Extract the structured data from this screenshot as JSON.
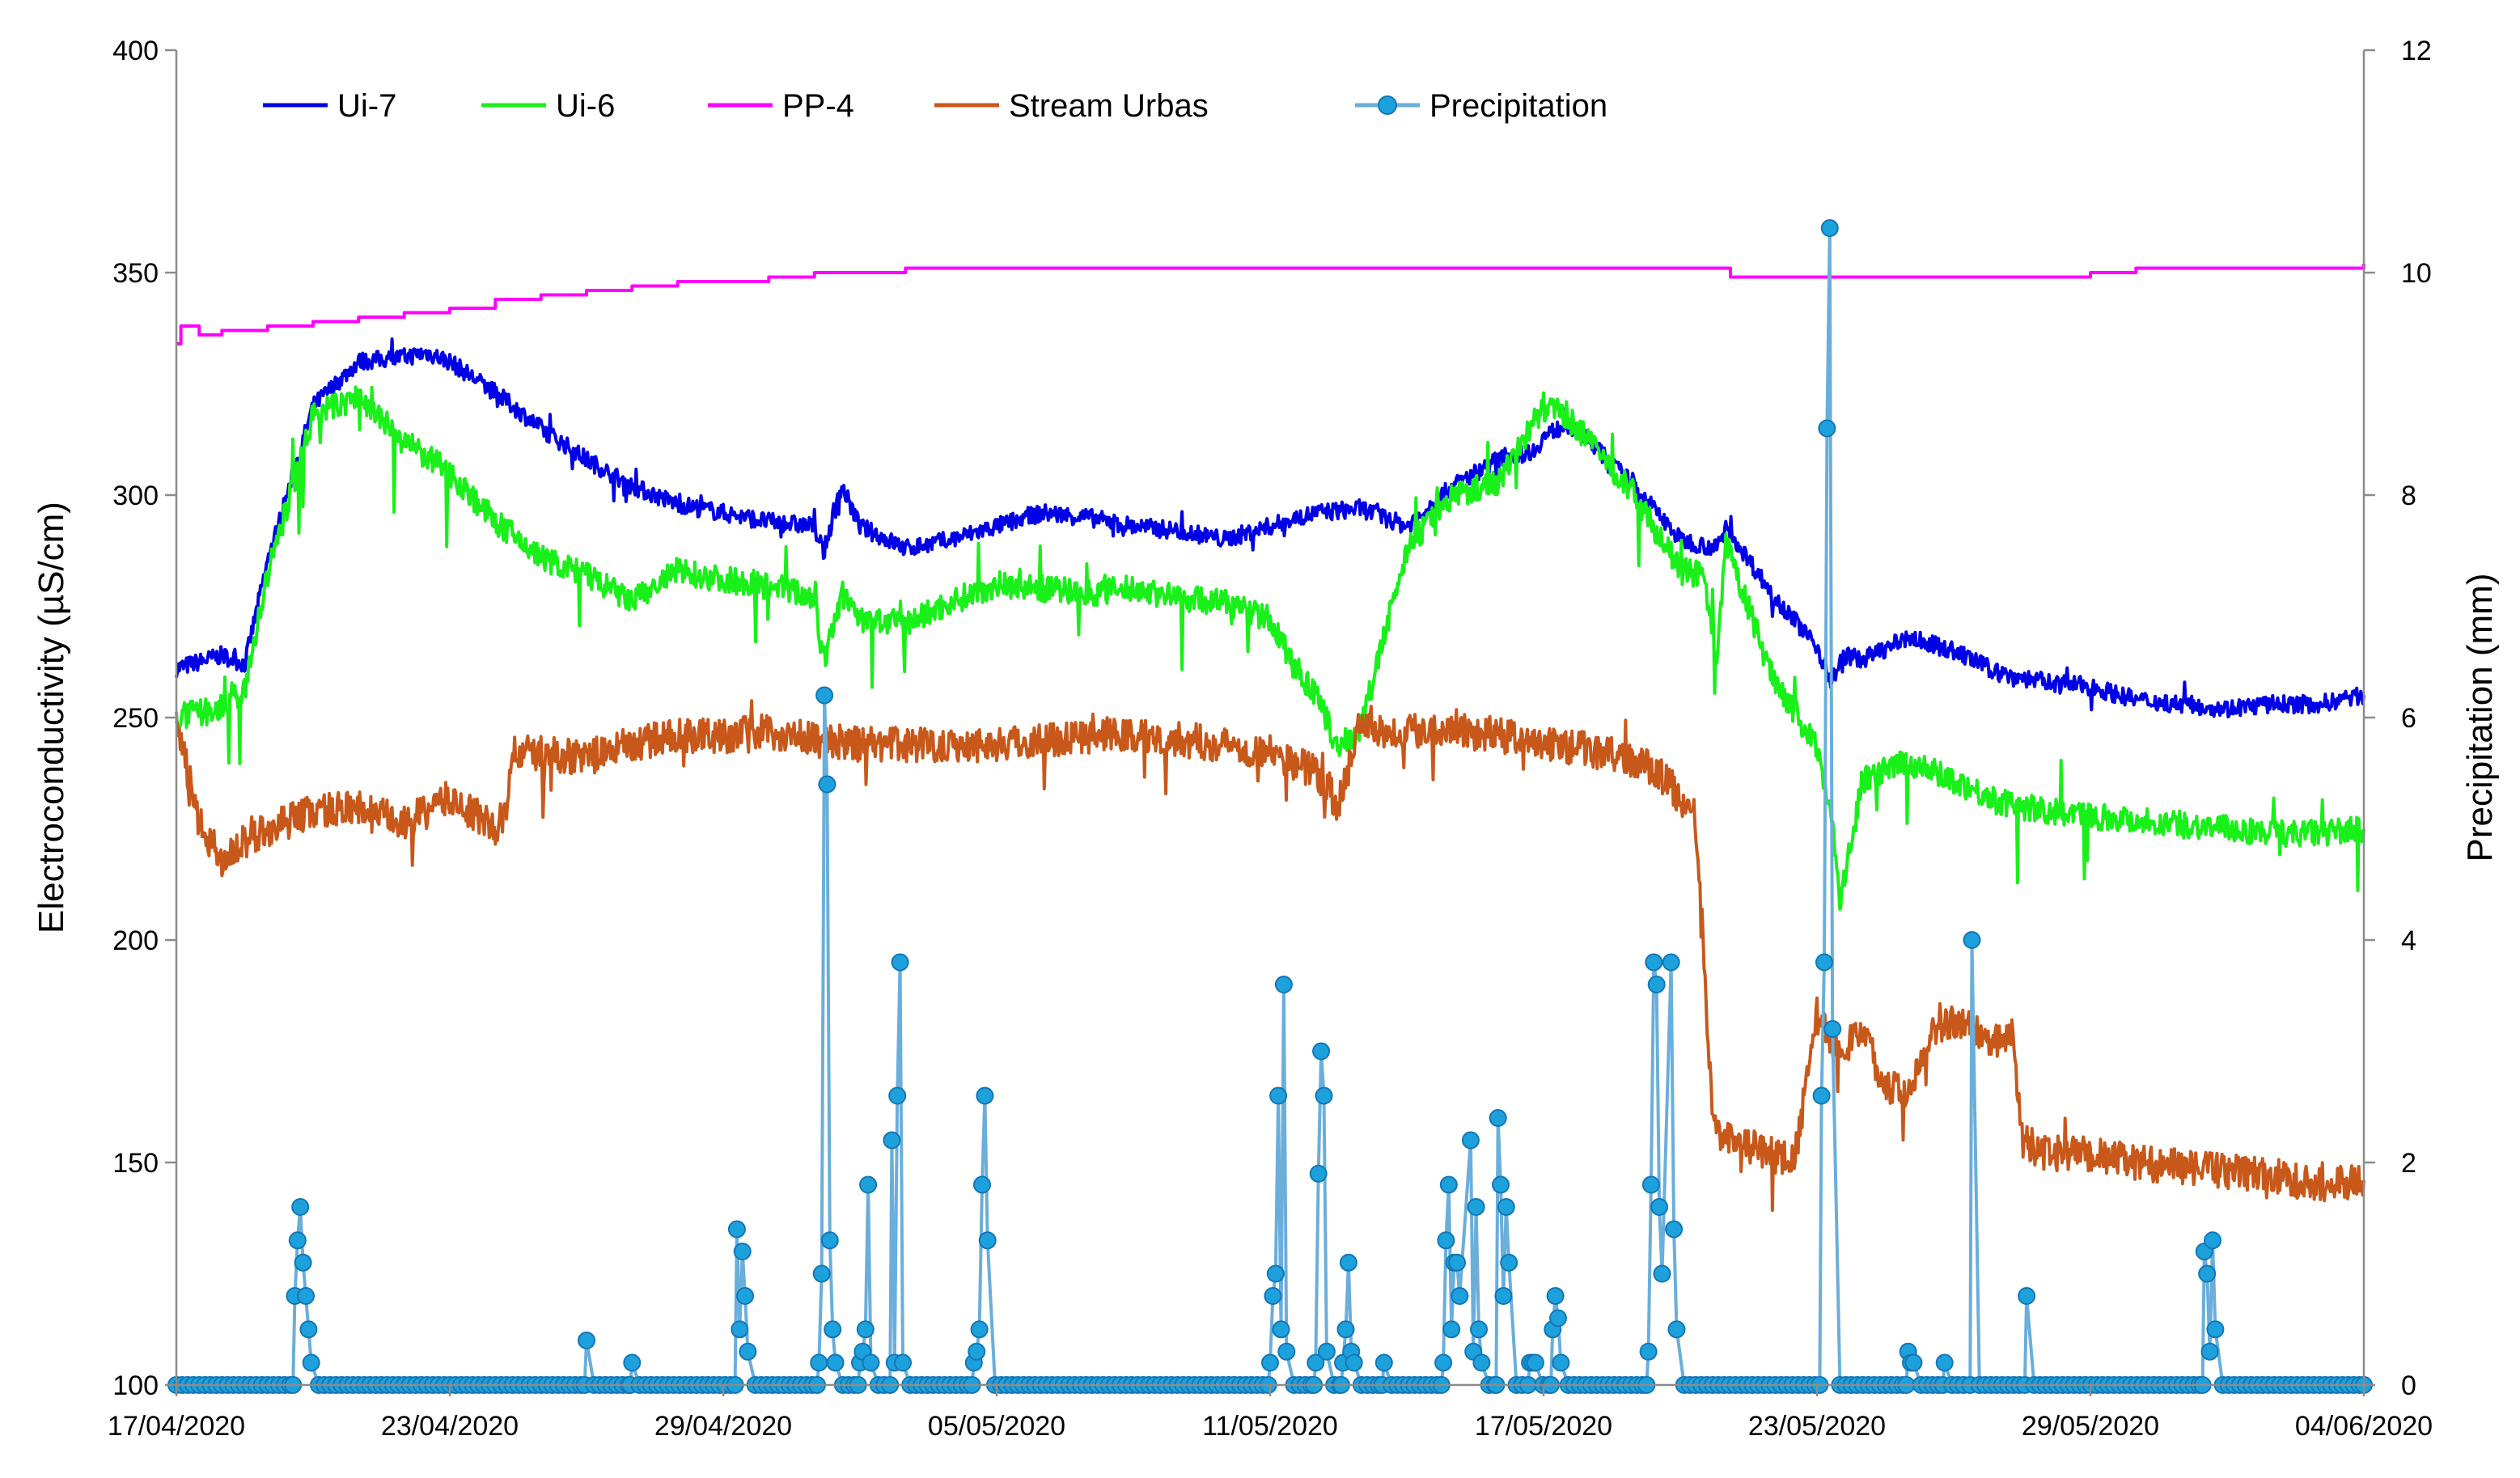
{
  "chart_data": {
    "type": "line",
    "title": "",
    "xlabel": "",
    "ylabel": "Electroconductivity (µS/cm)",
    "y2label": "Precipitation (mm)",
    "ylim": [
      100,
      400
    ],
    "y2lim": [
      0,
      12
    ],
    "yticks": [
      "100",
      "150",
      "200",
      "250",
      "300",
      "350",
      "400"
    ],
    "y2ticks": [
      "0",
      "2",
      "4",
      "6",
      "8",
      "10",
      "12"
    ],
    "xlim_days": [
      0,
      48
    ],
    "x_tick_labels": [
      "17/04/2020",
      "23/04/2020",
      "29/04/2020",
      "05/05/2020",
      "11/05/2020",
      "17/05/2020",
      "23/05/2020",
      "29/05/2020",
      "04/06/2020"
    ],
    "x_tick_days": [
      0,
      6,
      12,
      18,
      24,
      30,
      36,
      42,
      48
    ],
    "x_units": "days since 17/04/2020",
    "grid": false,
    "legend_position": "top-left",
    "series": [
      {
        "name": "Ui-7",
        "axis": "left",
        "color": "#0000e6",
        "x": [
          0,
          1,
          1.5,
          2,
          3,
          4,
          5,
          5.5,
          6,
          7,
          8,
          9,
          10,
          11,
          12,
          13,
          14,
          14.2,
          14.6,
          15,
          16,
          17,
          18,
          19,
          20,
          21,
          22,
          23,
          24,
          25,
          26,
          27,
          28,
          29,
          29.8,
          30,
          30.5,
          31,
          32,
          33,
          33.8,
          34,
          35,
          36,
          36.3,
          36.6,
          37,
          38,
          39,
          40,
          41,
          42,
          43,
          44,
          45,
          46,
          47,
          48
        ],
        "values": [
          261,
          264,
          262,
          285,
          320,
          330,
          331,
          332,
          330,
          323,
          315,
          308,
          302,
          298,
          296,
          294,
          293,
          287,
          302,
          293,
          288,
          290,
          293,
          296,
          295,
          293,
          292,
          290,
          293,
          296,
          297,
          293,
          302,
          308,
          310,
          313,
          316,
          312,
          302,
          290,
          288,
          293,
          278,
          266,
          258,
          264,
          263,
          268,
          265,
          260,
          258,
          257,
          254,
          253,
          252,
          253,
          253,
          255
        ]
      },
      {
        "name": "Ui-6",
        "axis": "left",
        "color": "#19f019",
        "x": [
          0,
          1,
          1.5,
          2,
          3,
          4,
          5,
          6,
          7,
          8,
          9,
          10,
          11,
          12,
          13,
          14,
          14.2,
          14.6,
          15,
          16,
          17,
          18,
          19,
          20,
          21,
          22,
          23,
          24,
          24.5,
          25,
          25.5,
          26,
          27,
          28,
          29,
          30,
          30.5,
          31,
          32,
          33,
          33.5,
          33.8,
          34,
          35,
          36,
          36.3,
          36.5,
          37,
          38,
          39,
          40,
          41,
          42,
          43,
          44,
          45,
          46,
          47,
          48
        ],
        "values": [
          250,
          252,
          256,
          282,
          318,
          322,
          312,
          305,
          294,
          286,
          282,
          276,
          283,
          281,
          280,
          277,
          262,
          278,
          272,
          271,
          276,
          280,
          279,
          278,
          279,
          277,
          276,
          272,
          262,
          255,
          243,
          248,
          288,
          300,
          303,
          320,
          318,
          312,
          300,
          283,
          282,
          262,
          289,
          260,
          243,
          230,
          208,
          236,
          240,
          236,
          231,
          229,
          228,
          227,
          226,
          225,
          224,
          224,
          225
        ]
      },
      {
        "name": "PP-4",
        "axis": "left",
        "color": "#ff00ff",
        "x": [
          0,
          0.1,
          0.5,
          1,
          2,
          3,
          4,
          5,
          6,
          7,
          8,
          9,
          10,
          11,
          12,
          13,
          14,
          15,
          16,
          17,
          18,
          20,
          24,
          28,
          32,
          34,
          34.1,
          36,
          38,
          40,
          42,
          43,
          44,
          48
        ],
        "values": [
          334,
          338,
          336,
          337,
          338,
          339,
          340,
          341,
          342,
          344,
          345,
          346,
          347,
          348,
          348,
          349,
          350,
          350,
          351,
          351,
          351,
          351,
          351,
          351,
          351,
          351,
          349,
          349,
          349,
          349,
          350,
          351,
          351,
          352
        ]
      },
      {
        "name": "Stream Urbas",
        "axis": "left",
        "color": "#c8581a",
        "x": [
          0,
          0.5,
          1,
          1.5,
          2,
          3,
          4,
          5,
          6,
          7,
          7.2,
          7.4,
          8,
          9,
          10,
          11,
          12,
          13,
          14,
          15,
          16,
          17,
          18,
          19,
          20,
          21,
          22,
          23,
          24,
          25,
          25.5,
          26,
          26.5,
          27,
          28,
          29,
          30,
          31,
          32,
          32.5,
          33,
          33.3,
          33.5,
          33.7,
          34,
          35,
          35.5,
          36,
          36.5,
          37,
          37.5,
          38,
          38.5,
          39,
          40,
          40.3,
          40.5,
          41,
          42,
          43,
          44,
          45,
          46,
          47,
          48
        ],
        "values": [
          249,
          226,
          218,
          222,
          225,
          229,
          230,
          226,
          232,
          225,
          228,
          242,
          242,
          241,
          244,
          246,
          246,
          247,
          245,
          244,
          244,
          244,
          244,
          245,
          246,
          246,
          245,
          244,
          242,
          238,
          230,
          250,
          247,
          247,
          248,
          246,
          244,
          243,
          240,
          238,
          232,
          228,
          200,
          160,
          155,
          152,
          150,
          183,
          175,
          180,
          167,
          166,
          180,
          182,
          177,
          180,
          155,
          152,
          152,
          150,
          149,
          148,
          147,
          145,
          146
        ]
      }
    ],
    "precipitation": {
      "name": "Precipitation",
      "axis": "right",
      "color": "#6aaedb",
      "marker_color": "#1da1dc",
      "unit": "mm",
      "events": [
        {
          "day": 2.6,
          "values": [
            0.8,
            1.3,
            1.6,
            1.1,
            0.8,
            0.5,
            0.2
          ]
        },
        {
          "day": 9.0,
          "values": [
            0.4
          ]
        },
        {
          "day": 10.0,
          "values": [
            0.2
          ]
        },
        {
          "day": 12.3,
          "values": [
            1.4,
            0.5,
            1.2,
            0.8,
            0.3
          ]
        },
        {
          "day": 14.1,
          "values": [
            0.2,
            1.0,
            6.2,
            5.4,
            1.3,
            0.5,
            0.2
          ]
        },
        {
          "day": 15.0,
          "values": [
            0.2,
            0.3,
            0.5,
            1.8,
            0.2
          ]
        },
        {
          "day": 15.7,
          "values": [
            2.2,
            0.2,
            2.6,
            3.8,
            0.2
          ]
        },
        {
          "day": 17.5,
          "values": [
            0.2,
            0.3,
            0.5,
            1.8,
            2.6,
            1.3
          ]
        },
        {
          "day": 24.0,
          "values": [
            0.2,
            0.8,
            1.0,
            2.6,
            0.5,
            3.6,
            0.3
          ]
        },
        {
          "day": 25.0,
          "values": [
            0.2,
            1.9,
            3.0,
            2.6,
            0.3
          ]
        },
        {
          "day": 25.6,
          "values": [
            0.2,
            0.5,
            1.1,
            0.3,
            0.2
          ]
        },
        {
          "day": 26.5,
          "values": [
            0.2
          ]
        },
        {
          "day": 27.8,
          "values": [
            0.2,
            1.3,
            1.8,
            0.5,
            1.1,
            1.1,
            0.8
          ]
        },
        {
          "day": 28.4,
          "values": [
            2.2,
            0.3,
            1.6,
            0.5,
            0.2
          ]
        },
        {
          "day": 29.0,
          "values": [
            2.4,
            1.8,
            0.8,
            1.6,
            1.1
          ]
        },
        {
          "day": 29.7,
          "values": [
            0.2,
            0.2,
            0.2
          ]
        },
        {
          "day": 30.2,
          "values": [
            0.5,
            0.8,
            0.6,
            0.2
          ]
        },
        {
          "day": 32.3,
          "values": [
            0.3,
            1.8,
            3.8,
            3.6,
            1.6,
            1.0
          ]
        },
        {
          "day": 32.8,
          "values": [
            3.8,
            1.4,
            0.5
          ]
        },
        {
          "day": 36.1,
          "values": [
            2.6,
            3.8,
            8.6,
            10.4,
            3.2
          ]
        },
        {
          "day": 38.0,
          "values": [
            0.3,
            0.2,
            0.2
          ]
        },
        {
          "day": 38.8,
          "values": [
            0.2
          ]
        },
        {
          "day": 39.4,
          "values": [
            4.0
          ]
        },
        {
          "day": 40.6,
          "values": [
            0.8
          ]
        },
        {
          "day": 44.5,
          "values": [
            1.2,
            1.0,
            0.3,
            1.3,
            0.5
          ]
        }
      ]
    }
  }
}
